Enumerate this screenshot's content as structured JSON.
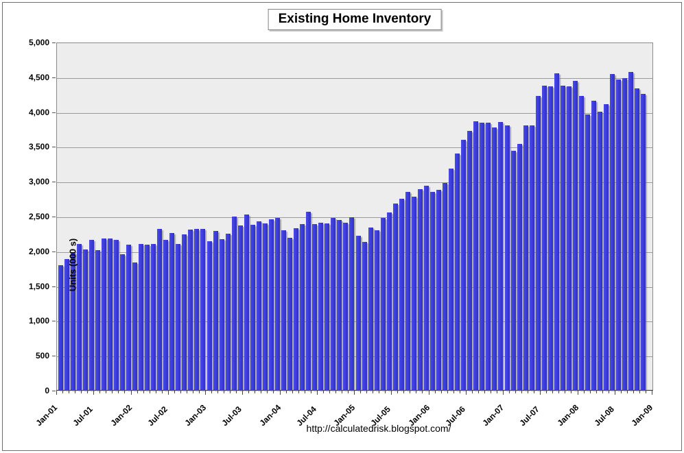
{
  "chart_data": {
    "type": "bar",
    "title": "Existing Home Inventory",
    "ylabel": "Units (000 s)",
    "source_caption": "http://calculatedrisk.blogspot.com/",
    "legend": "none",
    "grid": "horizontal",
    "ylim": [
      0,
      5000
    ],
    "bar_color": "#3B3BD9",
    "plot_bg": "#EDEDED",
    "y_tick_values": [
      5000,
      4500,
      4000,
      3500,
      3000,
      2500,
      2000,
      1500,
      1000,
      500,
      0
    ],
    "y_tick_labels": [
      "5,000",
      "4,500",
      "4,000",
      "3,500",
      "3,000",
      "2,500",
      "2,000",
      "1,500",
      "1,000",
      "500",
      "0"
    ],
    "x_tick_labels": [
      "Jan-01",
      "Jul-01",
      "Jan-02",
      "Jul-02",
      "Jan-03",
      "Jul-03",
      "Jan-04",
      "Jul-04",
      "Jan-05",
      "Jul-05",
      "Jan-06",
      "Jul-06",
      "Jan-07",
      "Jul-07",
      "Jan-08",
      "Jul-08",
      "Jan-09"
    ],
    "categories": [
      "Jan-01",
      "Feb-01",
      "Mar-01",
      "Apr-01",
      "May-01",
      "Jun-01",
      "Jul-01",
      "Aug-01",
      "Sep-01",
      "Oct-01",
      "Nov-01",
      "Dec-01",
      "Jan-02",
      "Feb-02",
      "Mar-02",
      "Apr-02",
      "May-02",
      "Jun-02",
      "Jul-02",
      "Aug-02",
      "Sep-02",
      "Oct-02",
      "Nov-02",
      "Dec-02",
      "Jan-03",
      "Feb-03",
      "Mar-03",
      "Apr-03",
      "May-03",
      "Jun-03",
      "Jul-03",
      "Aug-03",
      "Sep-03",
      "Oct-03",
      "Nov-03",
      "Dec-03",
      "Jan-04",
      "Feb-04",
      "Mar-04",
      "Apr-04",
      "May-04",
      "Jun-04",
      "Jul-04",
      "Aug-04",
      "Sep-04",
      "Oct-04",
      "Nov-04",
      "Dec-04",
      "Jan-05",
      "Feb-05",
      "Mar-05",
      "Apr-05",
      "May-05",
      "Jun-05",
      "Jul-05",
      "Aug-05",
      "Sep-05",
      "Oct-05",
      "Nov-05",
      "Dec-05",
      "Jan-06",
      "Feb-06",
      "Mar-06",
      "Apr-06",
      "May-06",
      "Jun-06",
      "Jul-06",
      "Aug-06",
      "Sep-06",
      "Oct-06",
      "Nov-06",
      "Dec-06",
      "Jan-07",
      "Feb-07",
      "Mar-07",
      "Apr-07",
      "May-07",
      "Jun-07",
      "Jul-07",
      "Aug-07",
      "Sep-07",
      "Oct-07",
      "Nov-07",
      "Dec-07",
      "Jan-08",
      "Feb-08",
      "Mar-08",
      "Apr-08",
      "May-08",
      "Jun-08",
      "Jul-08",
      "Aug-08",
      "Sep-08",
      "Oct-08",
      "Nov-08"
    ],
    "values": [
      1790,
      1880,
      1970,
      2100,
      2015,
      2155,
      2010,
      2180,
      2180,
      2155,
      1950,
      2085,
      1830,
      2095,
      2085,
      2095,
      2315,
      2155,
      2255,
      2095,
      2230,
      2305,
      2315,
      2315,
      2135,
      2285,
      2165,
      2240,
      2495,
      2360,
      2515,
      2370,
      2425,
      2395,
      2450,
      2470,
      2290,
      2190,
      2320,
      2385,
      2560,
      2380,
      2405,
      2395,
      2475,
      2445,
      2405,
      2485,
      2215,
      2130,
      2330,
      2290,
      2470,
      2550,
      2675,
      2750,
      2845,
      2780,
      2885,
      2930,
      2845,
      2875,
      2975,
      3180,
      3400,
      3590,
      3720,
      3860,
      3840,
      3840,
      3770,
      3850,
      3800,
      3440,
      3530,
      3800,
      3800,
      4220,
      4370,
      4360,
      4550,
      4370,
      4360,
      4440,
      4220,
      3960,
      4150,
      4000,
      4100,
      4540,
      4460,
      4480,
      4570,
      4330,
      4250
    ]
  }
}
